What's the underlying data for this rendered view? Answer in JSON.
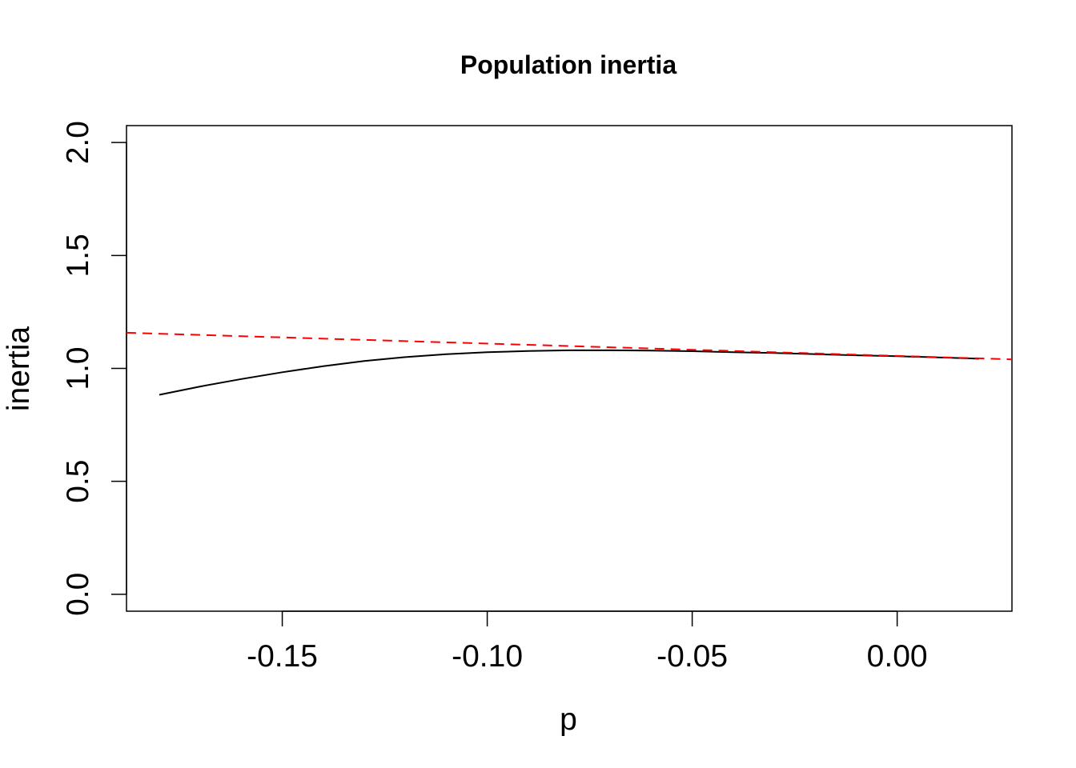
{
  "chart_data": {
    "type": "line",
    "title": "Population inertia",
    "xlabel": "p",
    "ylabel": "inertia",
    "xlim": [
      -0.188,
      0.028
    ],
    "ylim": [
      -0.075,
      2.075
    ],
    "x_ticks": [
      -0.15,
      -0.1,
      -0.05,
      0.0
    ],
    "x_tick_labels": [
      "-0.15",
      "-0.10",
      "-0.05",
      "0.00"
    ],
    "y_ticks": [
      0.0,
      0.5,
      1.0,
      1.5,
      2.0
    ],
    "y_tick_labels": [
      "0.0",
      "0.5",
      "1.0",
      "1.5",
      "2.0"
    ],
    "grid": false,
    "legend": "none",
    "series": [
      {
        "style": "solid",
        "color": "#000000",
        "x": [
          -0.18,
          -0.17,
          -0.16,
          -0.15,
          -0.14,
          -0.13,
          -0.12,
          -0.11,
          -0.1,
          -0.09,
          -0.08,
          -0.07,
          -0.06,
          -0.05,
          -0.04,
          -0.03,
          -0.02,
          -0.01,
          0.0,
          0.01,
          0.02
        ],
        "y": [
          0.883,
          0.92,
          0.953,
          0.983,
          1.01,
          1.033,
          1.05,
          1.063,
          1.072,
          1.077,
          1.08,
          1.08,
          1.079,
          1.076,
          1.072,
          1.068,
          1.063,
          1.058,
          1.054,
          1.049,
          1.043
        ]
      },
      {
        "style": "dashed",
        "color": "#ff0000",
        "x": [
          -0.188,
          0.028
        ],
        "y": [
          1.158,
          1.04
        ]
      }
    ]
  }
}
